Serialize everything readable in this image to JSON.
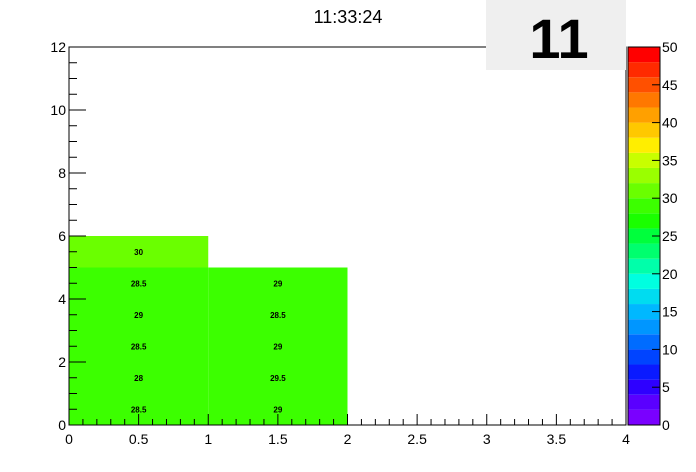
{
  "chart_data": {
    "type": "heatmap",
    "title": "11:33:24",
    "badge": "11",
    "xlim": [
      0,
      4
    ],
    "ylim": [
      0,
      12
    ],
    "x_ticks": [
      "0",
      "0.5",
      "1",
      "1.5",
      "2",
      "2.5",
      "3",
      "3.5",
      "4"
    ],
    "y_ticks": [
      "0",
      "2",
      "4",
      "6",
      "8",
      "10",
      "12"
    ],
    "zlim": [
      0,
      50
    ],
    "z_ticks": [
      "0",
      "5",
      "10",
      "15",
      "20",
      "25",
      "30",
      "35",
      "40",
      "45",
      "50"
    ],
    "cells": [
      {
        "x": [
          0,
          1
        ],
        "y": [
          0,
          1
        ],
        "value": 28.5,
        "label": "28.5"
      },
      {
        "x": [
          1,
          2
        ],
        "y": [
          0,
          1
        ],
        "value": 29,
        "label": "29"
      },
      {
        "x": [
          0,
          1
        ],
        "y": [
          1,
          2
        ],
        "value": 28,
        "label": "28"
      },
      {
        "x": [
          1,
          2
        ],
        "y": [
          1,
          2
        ],
        "value": 29.5,
        "label": "29.5"
      },
      {
        "x": [
          0,
          1
        ],
        "y": [
          2,
          3
        ],
        "value": 28.5,
        "label": "28.5"
      },
      {
        "x": [
          1,
          2
        ],
        "y": [
          2,
          3
        ],
        "value": 29,
        "label": "29"
      },
      {
        "x": [
          0,
          1
        ],
        "y": [
          3,
          4
        ],
        "value": 29,
        "label": "29"
      },
      {
        "x": [
          1,
          2
        ],
        "y": [
          3,
          4
        ],
        "value": 28.5,
        "label": "28.5"
      },
      {
        "x": [
          0,
          1
        ],
        "y": [
          4,
          5
        ],
        "value": 28.5,
        "label": "28.5"
      },
      {
        "x": [
          1,
          2
        ],
        "y": [
          4,
          5
        ],
        "value": 29,
        "label": "29"
      },
      {
        "x": [
          0,
          1
        ],
        "y": [
          5,
          6
        ],
        "value": 30,
        "label": "30"
      }
    ],
    "palette": [
      "#7a00ff",
      "#5a00ff",
      "#2e00ff",
      "#0a1aff",
      "#0044ff",
      "#006cff",
      "#0096ff",
      "#00b8ff",
      "#00dcf0",
      "#00ffe0",
      "#00ffaa",
      "#00ff6e",
      "#00ff3c",
      "#1aff00",
      "#3cff00",
      "#6aff00",
      "#9aff00",
      "#c8ff00",
      "#ffee00",
      "#ffc800",
      "#ffa000",
      "#ff7800",
      "#ff5000",
      "#ff2a00",
      "#ff0000"
    ],
    "grid": false,
    "legend": "colorbar-right"
  }
}
